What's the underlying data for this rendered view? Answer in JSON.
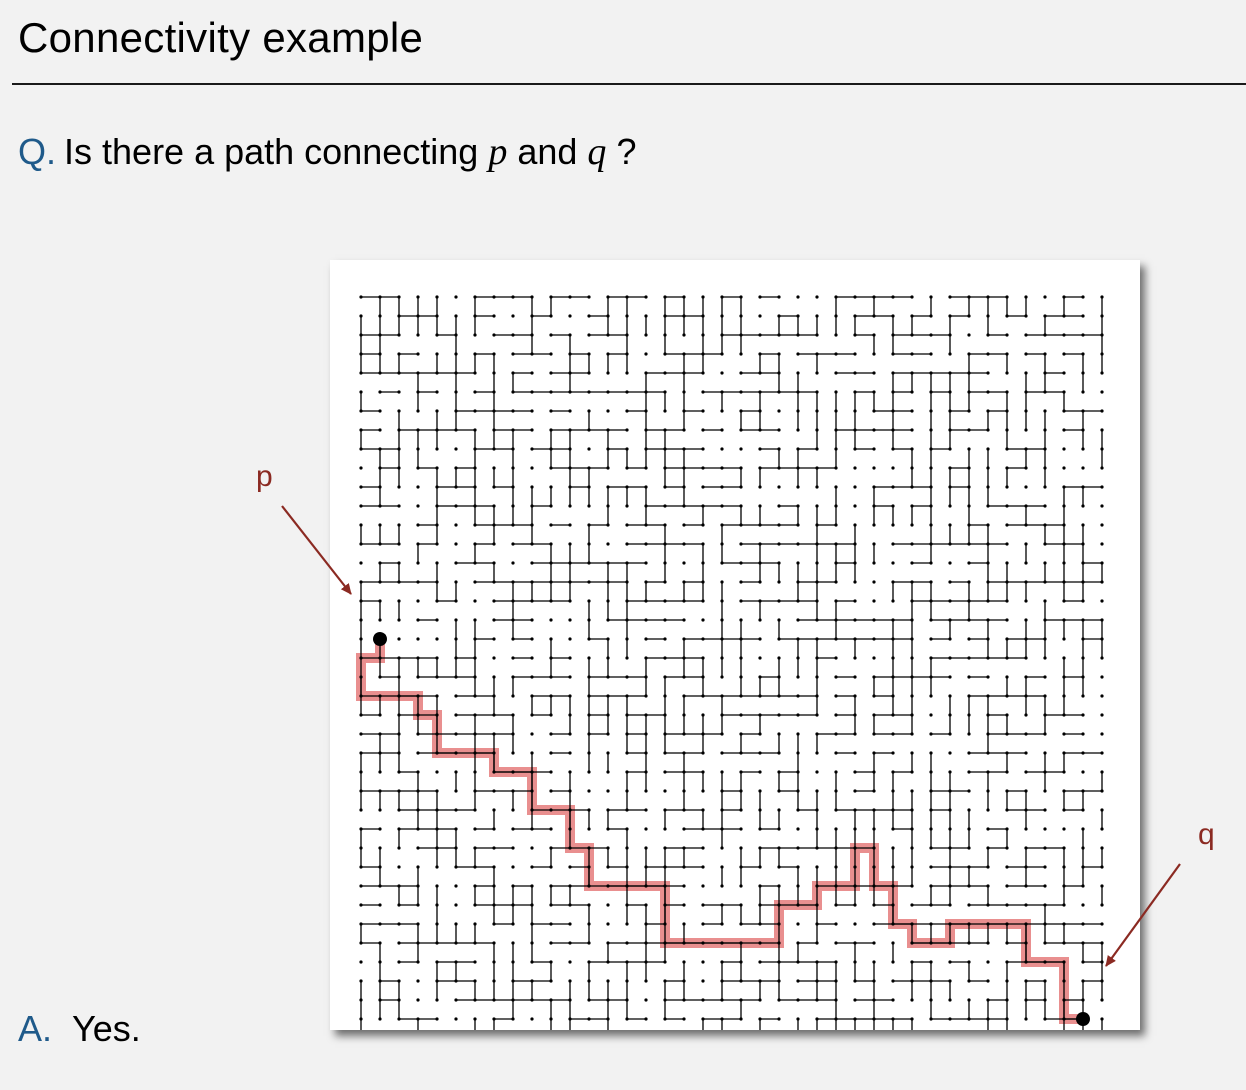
{
  "title": "Connectivity example",
  "question": {
    "label": "Q.",
    "text_before": "Is there a path connecting",
    "p": "p",
    "and": "and",
    "q": "q",
    "end": "?"
  },
  "answer": {
    "label": "A.",
    "text": "Yes."
  },
  "labels": {
    "p": "p",
    "q": "q"
  },
  "colors": {
    "background": "#f2f2f2",
    "accent": "#1f5a8a",
    "path_highlight": "#e06060",
    "arrow": "#8b2a22",
    "grid": "#000000"
  },
  "grid": {
    "rows": 40,
    "cols": 40
  }
}
